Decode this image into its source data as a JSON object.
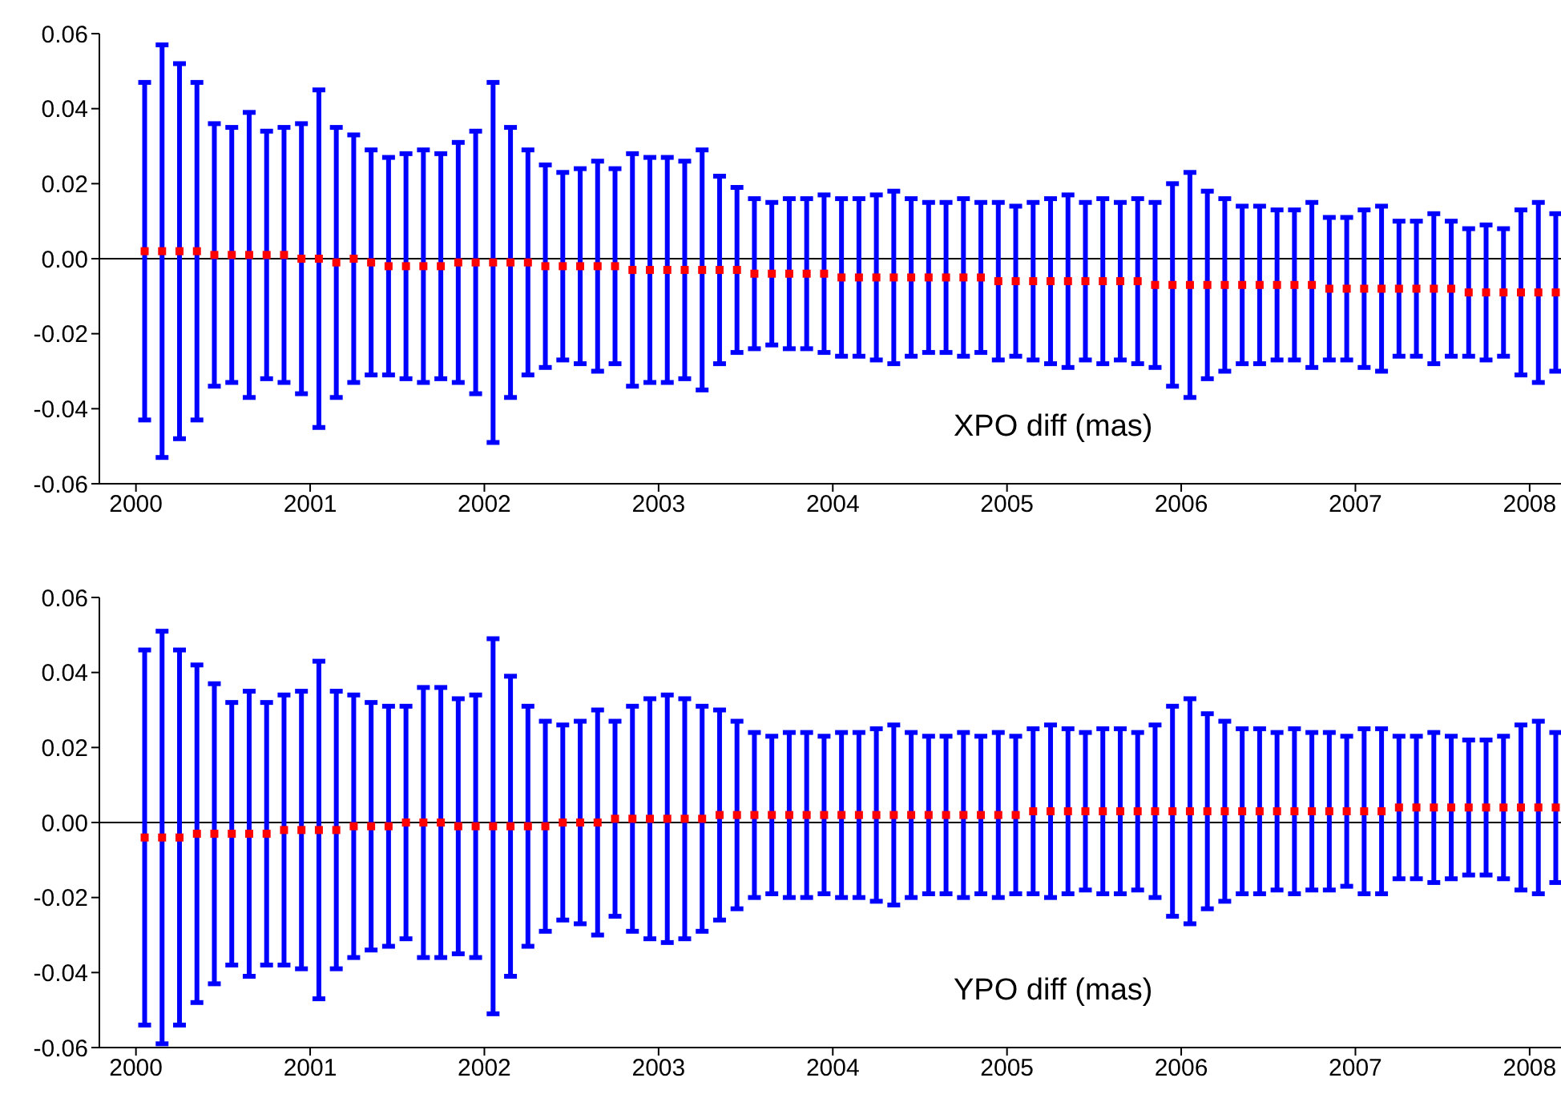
{
  "chart_data": [
    {
      "type": "scatter",
      "annotations": [
        "XPO diff (mas)"
      ],
      "xlim": [
        1999.79,
        2008.18
      ],
      "xticks": [
        2000,
        2001,
        2002,
        2003,
        2004,
        2005,
        2006,
        2007,
        2008
      ],
      "ylim": [
        -0.06,
        0.06
      ],
      "yticks": [
        -0.06,
        -0.04,
        -0.02,
        {
          "value": 0,
          "label": "0.00"
        },
        0.02,
        0.04,
        0.06
      ],
      "marker": "square",
      "ref_lines": [
        {
          "axis": "y",
          "value": 0,
          "color": "#000000"
        }
      ],
      "series": [
        {
          "color": "#ff0000",
          "x": [
            2000.05,
            2000.15,
            2000.25,
            2000.35,
            2000.45,
            2000.55,
            2000.65,
            2000.75,
            2000.85,
            2000.95,
            2001.05,
            2001.15,
            2001.25,
            2001.35,
            2001.45,
            2001.55,
            2001.65,
            2001.75,
            2001.85,
            2001.95,
            2002.05,
            2002.15,
            2002.25,
            2002.35,
            2002.45,
            2002.55,
            2002.65,
            2002.75,
            2002.85,
            2002.95,
            2003.05,
            2003.15,
            2003.25,
            2003.35,
            2003.45,
            2003.55,
            2003.65,
            2003.75,
            2003.85,
            2003.95,
            2004.05,
            2004.15,
            2004.25,
            2004.35,
            2004.45,
            2004.55,
            2004.65,
            2004.75,
            2004.85,
            2004.95,
            2005.05,
            2005.15,
            2005.25,
            2005.35,
            2005.45,
            2005.55,
            2005.65,
            2005.75,
            2005.85,
            2005.95,
            2006.05,
            2006.15,
            2006.25,
            2006.35,
            2006.45,
            2006.55,
            2006.65,
            2006.75,
            2006.85,
            2006.95,
            2007.05,
            2007.15,
            2007.25,
            2007.35,
            2007.45,
            2007.55,
            2007.65,
            2007.75,
            2007.85,
            2007.95,
            2008.05,
            2008.15
          ],
          "values": [
            0.002,
            0.002,
            0.002,
            0.002,
            0.001,
            0.001,
            0.001,
            0.001,
            0.001,
            0.0,
            0.0,
            -0.001,
            0.0,
            -0.001,
            -0.002,
            -0.002,
            -0.002,
            -0.002,
            -0.001,
            -0.001,
            -0.001,
            -0.001,
            -0.001,
            -0.002,
            -0.002,
            -0.002,
            -0.002,
            -0.002,
            -0.003,
            -0.003,
            -0.003,
            -0.003,
            -0.003,
            -0.003,
            -0.003,
            -0.004,
            -0.004,
            -0.004,
            -0.004,
            -0.004,
            -0.005,
            -0.005,
            -0.005,
            -0.005,
            -0.005,
            -0.005,
            -0.005,
            -0.005,
            -0.005,
            -0.006,
            -0.006,
            -0.006,
            -0.006,
            -0.006,
            -0.006,
            -0.006,
            -0.006,
            -0.006,
            -0.007,
            -0.007,
            -0.007,
            -0.007,
            -0.007,
            -0.007,
            -0.007,
            -0.007,
            -0.007,
            -0.007,
            -0.008,
            -0.008,
            -0.008,
            -0.008,
            -0.008,
            -0.008,
            -0.008,
            -0.008,
            -0.009,
            -0.009,
            -0.009,
            -0.009,
            -0.009,
            -0.009
          ],
          "errors": [
            0.045,
            0.055,
            0.05,
            0.045,
            0.035,
            0.034,
            0.038,
            0.033,
            0.034,
            0.036,
            0.045,
            0.036,
            0.033,
            0.03,
            0.029,
            0.03,
            0.031,
            0.03,
            0.032,
            0.035,
            0.048,
            0.036,
            0.03,
            0.027,
            0.025,
            0.026,
            0.028,
            0.026,
            0.031,
            0.03,
            0.03,
            0.029,
            0.032,
            0.025,
            0.022,
            0.02,
            0.019,
            0.02,
            0.02,
            0.021,
            0.021,
            0.021,
            0.022,
            0.023,
            0.021,
            0.02,
            0.02,
            0.021,
            0.02,
            0.021,
            0.02,
            0.021,
            0.022,
            0.023,
            0.021,
            0.022,
            0.021,
            0.022,
            0.022,
            0.027,
            0.03,
            0.025,
            0.023,
            0.021,
            0.021,
            0.02,
            0.02,
            0.022,
            0.019,
            0.019,
            0.021,
            0.022,
            0.018,
            0.018,
            0.02,
            0.018,
            0.017,
            0.018,
            0.017,
            0.022,
            0.024,
            0.021
          ]
        }
      ]
    },
    {
      "type": "scatter",
      "annotations": [
        "YPO diff (mas)"
      ],
      "xlim": [
        1999.79,
        2008.18
      ],
      "xticks": [
        2000,
        2001,
        2002,
        2003,
        2004,
        2005,
        2006,
        2007,
        2008
      ],
      "ylim": [
        -0.06,
        0.06
      ],
      "yticks": [
        -0.06,
        -0.04,
        -0.02,
        {
          "value": 0,
          "label": "0.00"
        },
        0.02,
        0.04,
        0.06
      ],
      "marker": "square",
      "ref_lines": [
        {
          "axis": "y",
          "value": 0,
          "color": "#000000"
        }
      ],
      "series": [
        {
          "color": "#ff0000",
          "x": [
            2000.05,
            2000.15,
            2000.25,
            2000.35,
            2000.45,
            2000.55,
            2000.65,
            2000.75,
            2000.85,
            2000.95,
            2001.05,
            2001.15,
            2001.25,
            2001.35,
            2001.45,
            2001.55,
            2001.65,
            2001.75,
            2001.85,
            2001.95,
            2002.05,
            2002.15,
            2002.25,
            2002.35,
            2002.45,
            2002.55,
            2002.65,
            2002.75,
            2002.85,
            2002.95,
            2003.05,
            2003.15,
            2003.25,
            2003.35,
            2003.45,
            2003.55,
            2003.65,
            2003.75,
            2003.85,
            2003.95,
            2004.05,
            2004.15,
            2004.25,
            2004.35,
            2004.45,
            2004.55,
            2004.65,
            2004.75,
            2004.85,
            2004.95,
            2005.05,
            2005.15,
            2005.25,
            2005.35,
            2005.45,
            2005.55,
            2005.65,
            2005.75,
            2005.85,
            2005.95,
            2006.05,
            2006.15,
            2006.25,
            2006.35,
            2006.45,
            2006.55,
            2006.65,
            2006.75,
            2006.85,
            2006.95,
            2007.05,
            2007.15,
            2007.25,
            2007.35,
            2007.45,
            2007.55,
            2007.65,
            2007.75,
            2007.85,
            2007.95,
            2008.05,
            2008.15
          ],
          "values": [
            -0.004,
            -0.004,
            -0.004,
            -0.003,
            -0.003,
            -0.003,
            -0.003,
            -0.003,
            -0.002,
            -0.002,
            -0.002,
            -0.002,
            -0.001,
            -0.001,
            -0.001,
            0.0,
            0.0,
            0.0,
            -0.001,
            -0.001,
            -0.001,
            -0.001,
            -0.001,
            -0.001,
            0.0,
            0.0,
            0.0,
            0.001,
            0.001,
            0.001,
            0.001,
            0.001,
            0.001,
            0.002,
            0.002,
            0.002,
            0.002,
            0.002,
            0.002,
            0.002,
            0.002,
            0.002,
            0.002,
            0.002,
            0.002,
            0.002,
            0.002,
            0.002,
            0.002,
            0.002,
            0.002,
            0.003,
            0.003,
            0.003,
            0.003,
            0.003,
            0.003,
            0.003,
            0.003,
            0.003,
            0.003,
            0.003,
            0.003,
            0.003,
            0.003,
            0.003,
            0.003,
            0.003,
            0.003,
            0.003,
            0.003,
            0.003,
            0.004,
            0.004,
            0.004,
            0.004,
            0.004,
            0.004,
            0.004,
            0.004,
            0.004,
            0.004
          ],
          "errors": [
            0.05,
            0.055,
            0.05,
            0.045,
            0.04,
            0.035,
            0.038,
            0.035,
            0.036,
            0.037,
            0.045,
            0.037,
            0.035,
            0.033,
            0.032,
            0.031,
            0.036,
            0.036,
            0.034,
            0.035,
            0.05,
            0.04,
            0.032,
            0.028,
            0.026,
            0.027,
            0.03,
            0.026,
            0.03,
            0.032,
            0.033,
            0.032,
            0.03,
            0.028,
            0.025,
            0.022,
            0.021,
            0.022,
            0.022,
            0.021,
            0.022,
            0.022,
            0.023,
            0.024,
            0.022,
            0.021,
            0.021,
            0.022,
            0.021,
            0.022,
            0.021,
            0.022,
            0.023,
            0.022,
            0.021,
            0.022,
            0.022,
            0.021,
            0.023,
            0.028,
            0.03,
            0.026,
            0.024,
            0.022,
            0.022,
            0.021,
            0.022,
            0.021,
            0.021,
            0.02,
            0.022,
            0.022,
            0.019,
            0.019,
            0.02,
            0.019,
            0.018,
            0.018,
            0.019,
            0.022,
            0.023,
            0.02
          ]
        }
      ]
    }
  ]
}
